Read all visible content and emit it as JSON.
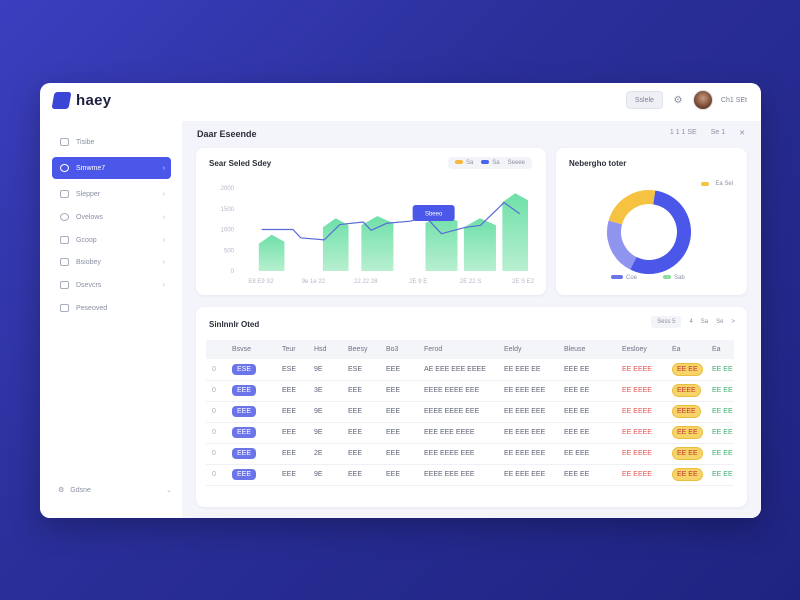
{
  "app": {
    "name": "haey"
  },
  "topbar": {
    "button_label": "Sslele",
    "user_name": "Ch1 SEt"
  },
  "sidebar": {
    "items": [
      {
        "label": "Tisibe",
        "active": false
      },
      {
        "label": "Smwme7",
        "active": true
      },
      {
        "label": "Slepper",
        "active": false
      },
      {
        "label": "Ovelows",
        "active": false
      },
      {
        "label": "Gcoop",
        "active": false
      },
      {
        "label": "Bsiobey",
        "active": false
      },
      {
        "label": "Dsevcrs",
        "active": false
      },
      {
        "label": "Peseoved",
        "active": false
      }
    ],
    "footer_label": "Gdsne"
  },
  "main": {
    "title": "Daar Eseende",
    "actions": [
      "1 1 1 SE",
      "Se 1"
    ]
  },
  "area_card": {
    "title": "Sear Seled Sdey",
    "legend": [
      {
        "label": "Sa",
        "color": "#f5b83d"
      },
      {
        "label": "Sa",
        "color": "#4a63e8"
      },
      {
        "label": "Seeee",
        "color": "#8a90a2"
      }
    ],
    "tooltip": "Sbeeo"
  },
  "donut_card": {
    "title": "Nebergho toter",
    "legend_top": "Ea Sel",
    "legend_bottom": [
      {
        "label": "Coe",
        "color": "#6c74ea"
      },
      {
        "label": "Sab",
        "color": "#8cdc9a"
      }
    ]
  },
  "chart_data": [
    {
      "type": "area",
      "title": "Sear Seled Sdey",
      "categories": [
        "E8 E9 S2",
        "9e 1e 22",
        "22 22 28",
        "2E 9 E",
        "2E 22 S",
        "2E S E2"
      ],
      "y_ticks": [
        "2000",
        "1500",
        "1000",
        "500",
        "0"
      ],
      "ylim": [
        0,
        2000
      ],
      "series": [
        {
          "values": [
            [
              200,
              1000
            ],
            [
              600,
              1000
            ],
            [
              700,
              800
            ],
            [
              1000,
              750
            ],
            [
              1200,
              1120
            ],
            [
              1500,
              1180
            ],
            [
              1600,
              980
            ],
            [
              1800,
              1150
            ],
            [
              2100,
              1200
            ],
            [
              2300,
              1300
            ],
            [
              2500,
              900
            ],
            [
              2800,
              1050
            ],
            [
              3000,
              1100
            ],
            [
              3300,
              1650
            ],
            [
              3500,
              1380
            ]
          ],
          "color": "#5a6bd8"
        }
      ],
      "bars": [
        {
          "from": 200,
          "to": 600,
          "value": 800
        },
        {
          "from": 1200,
          "to": 1600,
          "value": 1200
        },
        {
          "from": 1800,
          "to": 2300,
          "value": 1250
        },
        {
          "from": 2800,
          "to": 3300,
          "value": 1300
        },
        {
          "from": 3400,
          "to": 3900,
          "value": 1200
        },
        {
          "from": 4000,
          "to": 4400,
          "value": 1800
        }
      ]
    },
    {
      "type": "pie",
      "title": "Nebergho toter",
      "values": [
        55,
        22,
        23
      ],
      "colors": [
        "#4a57e8",
        "#8f95ef",
        "#f5c242"
      ]
    }
  ],
  "table_card": {
    "title": "Sinlnnlr Oted",
    "controls": [
      "Sess 5",
      "4",
      "Sa",
      "Se",
      ">"
    ],
    "headers": [
      "",
      "Bsvse",
      "Teur",
      "Hsd",
      "Beesy",
      "Bo3",
      "Ferod",
      "Eeldy",
      "Bleuse",
      "Eesloey",
      "Ea",
      "Ea"
    ],
    "rows": [
      [
        "0",
        "ESE",
        "ESE",
        "9E",
        "ESE",
        "EEE",
        "AE EEE EEE EEEE",
        "EE EEE EE",
        "EEE EE",
        "EE EEEE",
        "EE EE",
        "EE EE"
      ],
      [
        "0",
        "EEE",
        "EEE",
        "3E",
        "EEE",
        "EEE",
        "EEEE EEEE EEE",
        "EE EEE EEE",
        "EEE EE",
        "EE EEEE",
        "EEEE",
        "EE EE"
      ],
      [
        "0",
        "EEE",
        "EEE",
        "9E",
        "EEE",
        "EEE",
        "EEEE EEEE EEE",
        "EE EEE EEE",
        "EEE EE",
        "EE EEEE",
        "EEEE",
        "EE EE"
      ],
      [
        "0",
        "EEE",
        "EEE",
        "9E",
        "EEE",
        "EEE",
        "EEE EEE EEEE",
        "EE EEE EEE",
        "EEE EE",
        "EE EEEE",
        "EE EE",
        "EE EE"
      ],
      [
        "0",
        "EEE",
        "EEE",
        "2E",
        "EEE",
        "EEE",
        "EEE EEEE EEE",
        "EE EEE EEE",
        "EE EEE",
        "EE EEEE",
        "EE EE",
        "EE EE"
      ],
      [
        "0",
        "EEE",
        "EEE",
        "9E",
        "EEE",
        "EEE",
        "EEEE EEE EEE",
        "EE EEE EEE",
        "EEE EE",
        "EE EEEE",
        "EE EE",
        "EE EE"
      ]
    ]
  },
  "colors": {
    "accent": "#4a57e8",
    "background_top": "#3b3fbf",
    "area_fill_top": "#6ee0a8",
    "area_fill_bottom": "#b8efd0"
  }
}
